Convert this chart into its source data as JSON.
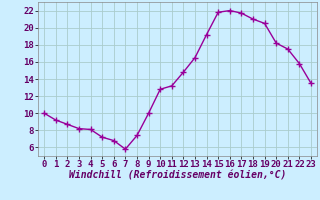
{
  "hours": [
    0,
    1,
    2,
    3,
    4,
    5,
    6,
    7,
    8,
    9,
    10,
    11,
    12,
    13,
    14,
    15,
    16,
    17,
    18,
    19,
    20,
    21,
    22,
    23
  ],
  "values": [
    10,
    9.2,
    8.7,
    8.2,
    8.1,
    7.2,
    6.8,
    5.8,
    7.4,
    10.0,
    12.8,
    13.2,
    14.8,
    16.5,
    19.2,
    21.8,
    22.0,
    21.7,
    21.0,
    20.5,
    18.2,
    17.5,
    15.8,
    13.5
  ],
  "line_color": "#990099",
  "marker": "+",
  "markersize": 4,
  "linewidth": 1.0,
  "bg_color": "#cceeff",
  "grid_color": "#aacccc",
  "xlabel": "Windchill (Refroidissement éolien,°C)",
  "xlabel_fontsize": 7,
  "tick_fontsize": 6.5,
  "ylim": [
    5,
    23
  ],
  "xlim": [
    -0.5,
    23.5
  ],
  "yticks": [
    6,
    8,
    10,
    12,
    14,
    16,
    18,
    20,
    22
  ],
  "xticks": [
    0,
    1,
    2,
    3,
    4,
    5,
    6,
    7,
    8,
    9,
    10,
    11,
    12,
    13,
    14,
    15,
    16,
    17,
    18,
    19,
    20,
    21,
    22,
    23
  ]
}
